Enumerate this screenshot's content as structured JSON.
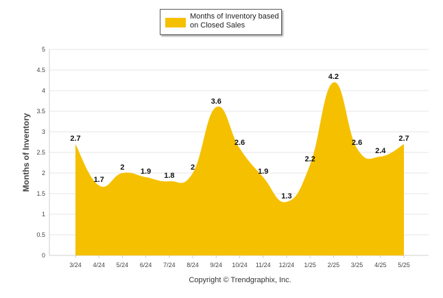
{
  "chart_data": {
    "type": "area",
    "categories": [
      "3/24",
      "4/24",
      "5/24",
      "6/24",
      "7/24",
      "8/24",
      "9/24",
      "10/24",
      "11/24",
      "12/24",
      "1/25",
      "2/25",
      "3/25",
      "4/25",
      "5/25"
    ],
    "series": [
      {
        "name": "Months of Inventory based on Closed Sales",
        "values": [
          2.7,
          1.7,
          2,
          1.9,
          1.8,
          2,
          3.6,
          2.6,
          1.9,
          1.3,
          2.2,
          4.2,
          2.6,
          2.4,
          2.7
        ],
        "color": "#f5c000"
      }
    ],
    "data_labels": [
      "2.7",
      "1.7",
      "2",
      "1.9",
      "1.8",
      "2",
      "3.6",
      "2.6",
      "1.9",
      "1.3",
      "2.2",
      "4.2",
      "2.6",
      "2.4",
      "2.7"
    ],
    "ylabel": "Months of Inventory",
    "xlabel": "",
    "ylim": [
      0,
      5
    ],
    "yticks": [
      "0",
      "0.5",
      "1",
      "1.5",
      "2",
      "2.5",
      "3",
      "3.5",
      "4",
      "4.5",
      "5"
    ],
    "grid": true,
    "legend": "top-center"
  },
  "legend": {
    "label": "Months of Inventory based on Closed Sales",
    "color": "#f5c000"
  },
  "footer": {
    "copyright": "Copyright © Trendgraphix, Inc."
  }
}
